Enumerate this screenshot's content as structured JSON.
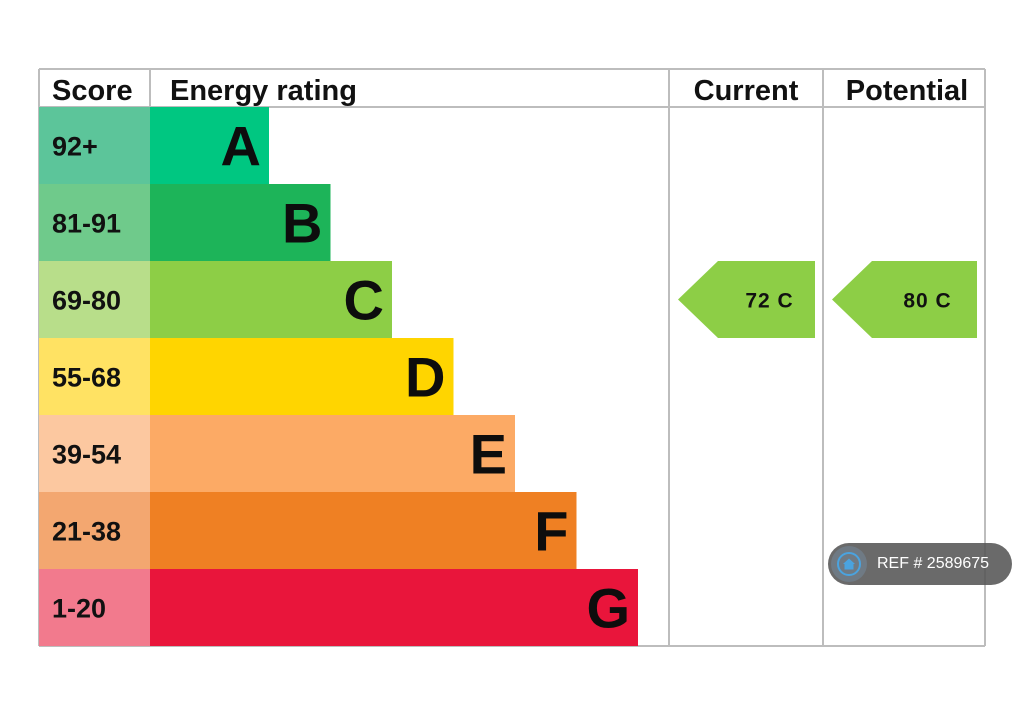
{
  "chart_data": {
    "type": "table",
    "headers": {
      "score": "Score",
      "rating": "Energy rating",
      "current": "Current",
      "potential": "Potential"
    },
    "bands": [
      {
        "letter": "A",
        "range": "92+",
        "color": "#00c781",
        "score_color": "#5cc59a"
      },
      {
        "letter": "B",
        "range": "81-91",
        "color": "#1db459",
        "score_color": "#6fca8b"
      },
      {
        "letter": "C",
        "range": "69-80",
        "color": "#8dce46",
        "score_color": "#b8de8a"
      },
      {
        "letter": "D",
        "range": "55-68",
        "color": "#ffd500",
        "score_color": "#ffe263"
      },
      {
        "letter": "E",
        "range": "39-54",
        "color": "#fcaa65",
        "score_color": "#fcc8a0"
      },
      {
        "letter": "F",
        "range": "21-38",
        "color": "#ef8023",
        "score_color": "#f3a770"
      },
      {
        "letter": "G",
        "range": "1-20",
        "color": "#e9153b",
        "score_color": "#f27a8d"
      }
    ],
    "current": {
      "value": 72,
      "band": "C",
      "label": "72  C",
      "color": "#8dce46"
    },
    "potential": {
      "value": 80,
      "band": "C",
      "label": "80  C",
      "color": "#8dce46"
    }
  },
  "watermark": {
    "text": "REF # 2589675",
    "icon": "house-icon"
  }
}
